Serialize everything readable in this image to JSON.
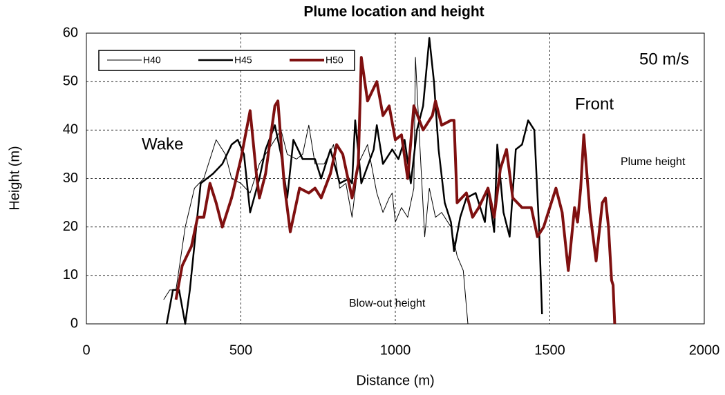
{
  "chart_data": {
    "type": "line",
    "title": "Plume location and height",
    "xlabel": "Distance (m)",
    "ylabel": "Height (m)",
    "xlim": [
      0,
      2000
    ],
    "xticks": [
      0,
      500,
      1000,
      1500,
      2000
    ],
    "ylim": [
      0,
      60
    ],
    "yticks": [
      0,
      10,
      20,
      30,
      40,
      50,
      60
    ],
    "grid": true,
    "legend": "top-left",
    "annotations": [
      "50 m/s",
      "Front",
      "Wake",
      "Plume height",
      "Blow-out height"
    ],
    "series": [
      {
        "name": "H40",
        "color": "#000000",
        "linewidth": 1,
        "x": [
          250,
          270,
          290,
          320,
          350,
          380,
          420,
          450,
          470,
          500,
          530,
          560,
          600,
          630,
          650,
          680,
          700,
          720,
          740,
          770,
          800,
          820,
          840,
          860,
          880,
          910,
          940,
          960,
          980,
          990,
          1000,
          1020,
          1040,
          1060,
          1065,
          1080,
          1095,
          1110,
          1130,
          1150,
          1180,
          1200,
          1220,
          1235
        ],
        "values": [
          5,
          7,
          7,
          20,
          28,
          30,
          38,
          35,
          30,
          29,
          27,
          33,
          37,
          40,
          35,
          34,
          35,
          41,
          33,
          33,
          37,
          28,
          29,
          22,
          33,
          37,
          27,
          23,
          26,
          27,
          21,
          24,
          22,
          28,
          55,
          36,
          18,
          28,
          22,
          23,
          20,
          14,
          11,
          0
        ]
      },
      {
        "name": "H45",
        "color": "#000000",
        "linewidth": 2.5,
        "x": [
          260,
          280,
          300,
          320,
          335,
          370,
          410,
          440,
          470,
          490,
          510,
          530,
          560,
          580,
          610,
          630,
          650,
          670,
          700,
          740,
          760,
          790,
          820,
          850,
          860,
          870,
          890,
          930,
          940,
          960,
          990,
          1010,
          1030,
          1050,
          1070,
          1090,
          1110,
          1125,
          1140,
          1160,
          1180,
          1190,
          1210,
          1230,
          1260,
          1290,
          1300,
          1320,
          1330,
          1350,
          1370,
          1390,
          1410,
          1430,
          1450,
          1465,
          1475
        ],
        "values": [
          0,
          7,
          7,
          0,
          7,
          29,
          31,
          33,
          37,
          38,
          35,
          23,
          30,
          36,
          41,
          35,
          26,
          38,
          34,
          34,
          30,
          36,
          29,
          30,
          29,
          42,
          29,
          36,
          41,
          33,
          36,
          34,
          38,
          29,
          40,
          45,
          59,
          50,
          36,
          25,
          21,
          15,
          22,
          26,
          27,
          21,
          28,
          19,
          37,
          23,
          18,
          36,
          37,
          42,
          40,
          20,
          2
        ]
      },
      {
        "name": "H50",
        "color": "#7f1010",
        "linewidth": 4,
        "x": [
          290,
          310,
          340,
          360,
          380,
          400,
          420,
          440,
          470,
          500,
          530,
          550,
          560,
          580,
          610,
          620,
          640,
          660,
          690,
          720,
          740,
          760,
          790,
          810,
          830,
          860,
          880,
          890,
          910,
          940,
          960,
          980,
          1000,
          1020,
          1040,
          1060,
          1090,
          1120,
          1130,
          1150,
          1180,
          1190,
          1200,
          1230,
          1250,
          1270,
          1300,
          1320,
          1340,
          1360,
          1380,
          1410,
          1440,
          1460,
          1480,
          1520,
          1540,
          1560,
          1580,
          1590,
          1600,
          1610,
          1630,
          1650,
          1670,
          1680,
          1690,
          1700,
          1705,
          1710
        ],
        "values": [
          5,
          12,
          16,
          22,
          22,
          29,
          25,
          20,
          26,
          34,
          44,
          31,
          26,
          31,
          45,
          46,
          29,
          19,
          28,
          27,
          28,
          26,
          31,
          37,
          35,
          26,
          33,
          55,
          46,
          50,
          43,
          45,
          38,
          39,
          30,
          45,
          40,
          43,
          46,
          41,
          42,
          42,
          25,
          27,
          22,
          24,
          28,
          22,
          32,
          36,
          26,
          24,
          24,
          18,
          20,
          28,
          23,
          11,
          24,
          21,
          28,
          39,
          23,
          13,
          25,
          26,
          20,
          9,
          8,
          0
        ]
      }
    ]
  }
}
